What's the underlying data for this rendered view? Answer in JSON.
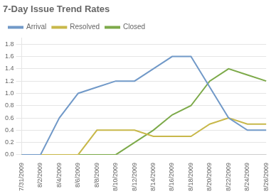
{
  "chart_data": {
    "type": "line",
    "title": "7-Day Issue Trend Rates",
    "categories": [
      "7/31/2009",
      "8/2/2009",
      "8/4/2009",
      "8/6/2009",
      "8/8/2009",
      "8/10/2009",
      "8/12/2009",
      "8/14/2009",
      "8/16/2009",
      "8/18/2009",
      "8/20/2009",
      "8/22/2009",
      "8/24/2009",
      "8/26/2009"
    ],
    "series": [
      {
        "name": "Arrival",
        "color": "#7199c8",
        "values": [
          0.0,
          0.0,
          0.6,
          1.0,
          1.1,
          1.2,
          1.2,
          1.4,
          1.6,
          1.6,
          1.1,
          0.6,
          0.4,
          0.4
        ]
      },
      {
        "name": "Resolved",
        "color": "#c8b84a",
        "values": [
          0.0,
          0.0,
          0.0,
          0.0,
          0.4,
          0.4,
          0.4,
          0.3,
          0.3,
          0.3,
          0.5,
          0.6,
          0.5,
          0.5
        ]
      },
      {
        "name": "Closed",
        "color": "#7daa4a",
        "values": [
          0.0,
          0.0,
          0.0,
          0.0,
          0.0,
          0.0,
          0.2,
          0.4,
          0.65,
          0.8,
          1.2,
          1.4,
          1.3,
          1.2
        ]
      }
    ],
    "ylim": [
      0.0,
      1.9
    ],
    "yticks": [
      {
        "value": 0,
        "label": "0.0"
      },
      0.2,
      0.4,
      0.6,
      0.8,
      {
        "value": 1,
        "label": "1.0"
      },
      1.2,
      1.4,
      1.6,
      1.8
    ],
    "grid": true,
    "legend": "upper left"
  }
}
